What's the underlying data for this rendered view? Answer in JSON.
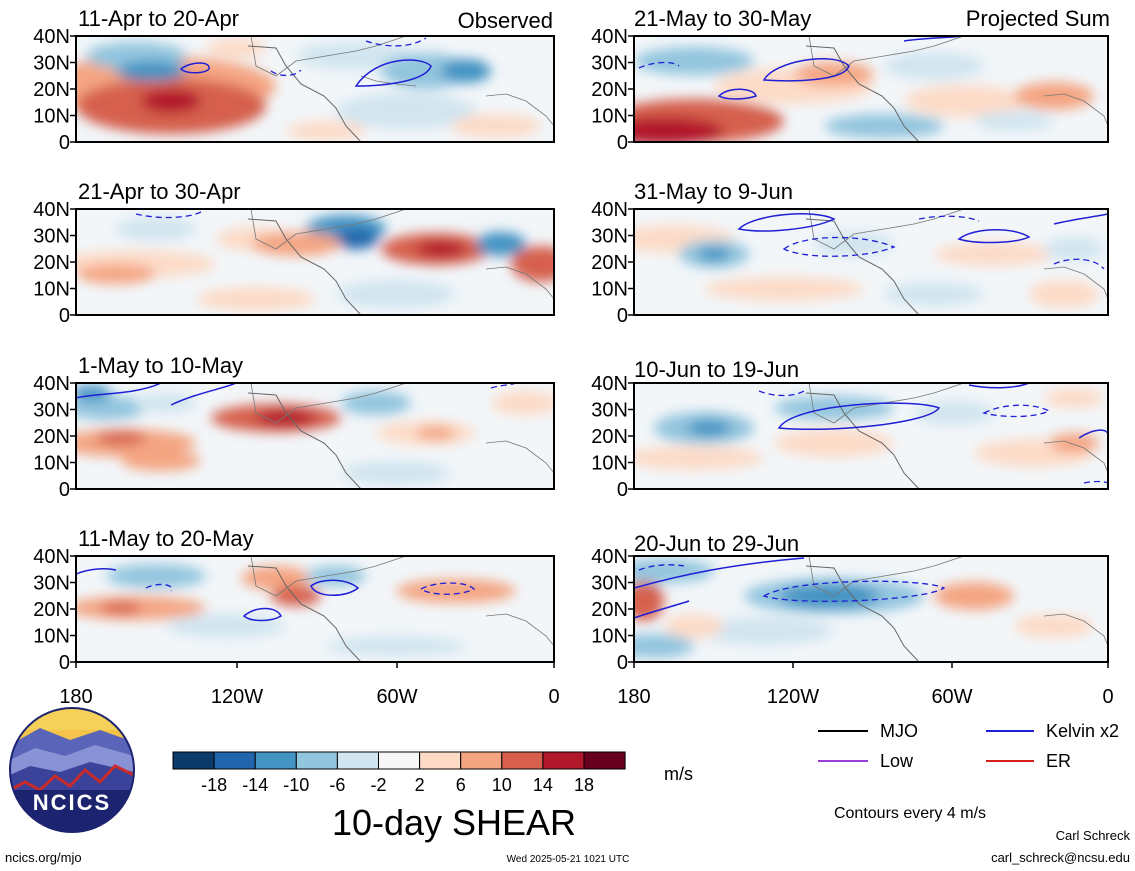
{
  "panels_left": [
    {
      "title": "11-Apr to 20-Apr",
      "label": "Observed"
    },
    {
      "title": "21-Apr to 30-Apr",
      "label": ""
    },
    {
      "title": "1-May to 10-May",
      "label": ""
    },
    {
      "title": "11-May to 20-May",
      "label": ""
    }
  ],
  "panels_right": [
    {
      "title": "21-May to 30-May",
      "label": "Projected Sum"
    },
    {
      "title": "31-May to 9-Jun",
      "label": ""
    },
    {
      "title": "10-Jun to 19-Jun",
      "label": ""
    },
    {
      "title": "20-Jun to 29-Jun",
      "label": ""
    }
  ],
  "y_ticks": [
    "40N",
    "30N",
    "20N",
    "10N",
    "0"
  ],
  "x_ticks": [
    "180",
    "120W",
    "60W",
    "0"
  ],
  "colorbar": {
    "ticks": [
      "-18",
      "-14",
      "-10",
      "-6",
      "-2",
      "2",
      "6",
      "10",
      "14",
      "18"
    ],
    "colors": [
      "#0b3a6b",
      "#2166ac",
      "#4393c3",
      "#92c5de",
      "#d1e5f0",
      "#f7f7f7",
      "#fddbc7",
      "#f4a582",
      "#d6604d",
      "#b2182b",
      "#67001f"
    ],
    "unit": "m/s",
    "title": "10-day SHEAR"
  },
  "legend": {
    "mjo": "MJO",
    "kelvin": "Kelvin x2",
    "low": "Low",
    "er": "ER",
    "colors": {
      "mjo": "#000000",
      "kelvin": "#1f1fd6",
      "low": "#9a3fd6",
      "er": "#d62020"
    }
  },
  "contours_note": "Contours every 4 m/s",
  "logo_text": "NCICS",
  "footer": {
    "url": "ncics.org/mjo",
    "timestamp": "Wed 2025-05-21 1021 UTC",
    "author": "Carl Schreck",
    "email": "carl_schreck@ncsu.edu"
  }
}
